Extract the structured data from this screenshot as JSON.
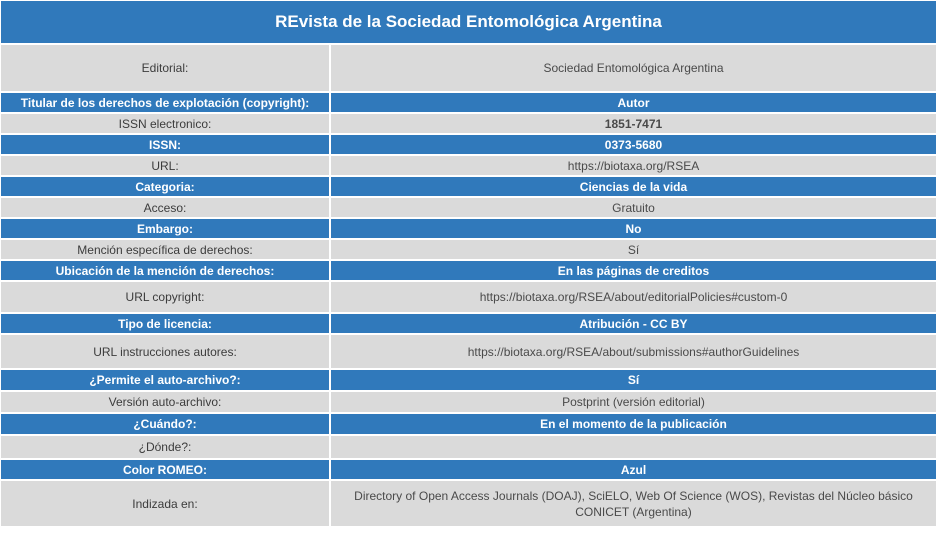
{
  "title": "REvista de la Sociedad Entomológica Argentina",
  "colors": {
    "header_blue": "#3079bb",
    "row_gray": "#dadada"
  },
  "rows": [
    {
      "label": "Editorial:",
      "value": "Sociedad Entomológica Argentina"
    },
    {
      "label": "Titular de los derechos de explotación (copyright):",
      "value": "Autor"
    },
    {
      "label": "ISSN electronico:",
      "value": "1851-7471"
    },
    {
      "label": "ISSN:",
      "value": "0373-5680"
    },
    {
      "label": "URL:",
      "value": "https://biotaxa.org/RSEA"
    },
    {
      "label": "Categoria:",
      "value": "Ciencias de la vida"
    },
    {
      "label": "Acceso:",
      "value": "Gratuito"
    },
    {
      "label": "Embargo:",
      "value": "No"
    },
    {
      "label": "Mención específica de derechos:",
      "value": "Sí"
    },
    {
      "label": "Ubicación de la mención de derechos:",
      "value": "En las páginas de creditos"
    },
    {
      "label": "URL copyright:",
      "value": "https://biotaxa.org/RSEA/about/editorialPolicies#custom-0"
    },
    {
      "label": "Tipo de licencia:",
      "value": "Atribución - CC BY"
    },
    {
      "label": "URL instrucciones autores:",
      "value": "https://biotaxa.org/RSEA/about/submissions#authorGuidelines"
    },
    {
      "label": "¿Permite el auto-archivo?:",
      "value": "Sí"
    },
    {
      "label": "Versión auto-archivo:",
      "value": "Postprint (versión editorial)"
    },
    {
      "label": "¿Cuándo?:",
      "value": "En el momento de la publicación"
    },
    {
      "label": "¿Dónde?:",
      "value": ""
    },
    {
      "label": "Color ROMEO:",
      "value": "Azul"
    },
    {
      "label": "Indizada en:",
      "value": "Directory of Open Access Journals (DOAJ), SciELO, Web Of Science (WOS), Revistas del Núcleo básico CONICET (Argentina)"
    }
  ]
}
